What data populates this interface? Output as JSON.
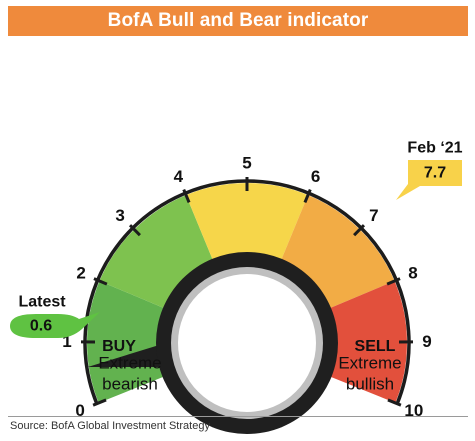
{
  "title": "BofA Bull and Bear indicator",
  "source": "Source: BofA Global Investment Strategy",
  "chart_data": {
    "type": "gauge",
    "scale_min": 0,
    "scale_max": 10,
    "ticks": [
      "0",
      "1",
      "2",
      "3",
      "4",
      "5",
      "6",
      "7",
      "8",
      "9",
      "10"
    ],
    "bands": [
      {
        "from": 0,
        "to": 2,
        "color": "#62b24f"
      },
      {
        "from": 2,
        "to": 4,
        "color": "#7ec24f"
      },
      {
        "from": 4,
        "to": 6,
        "color": "#f6d64a"
      },
      {
        "from": 6,
        "to": 8,
        "color": "#f2ac45"
      },
      {
        "from": 8,
        "to": 10,
        "color": "#e2503c"
      }
    ],
    "zone_labels": {
      "buy": "BUY",
      "sell": "SELL"
    },
    "end_labels": {
      "left_line1": "Extreme",
      "left_line2": "bearish",
      "right_line1": "Extreme",
      "right_line2": "bullish"
    },
    "latest": {
      "label": "Latest",
      "value": 0.6,
      "display": "0.6",
      "color": "#5fc242"
    },
    "reference": {
      "label": "Feb ‘21",
      "value": 7.7,
      "display": "7.7",
      "color": "#f8d24a"
    }
  }
}
